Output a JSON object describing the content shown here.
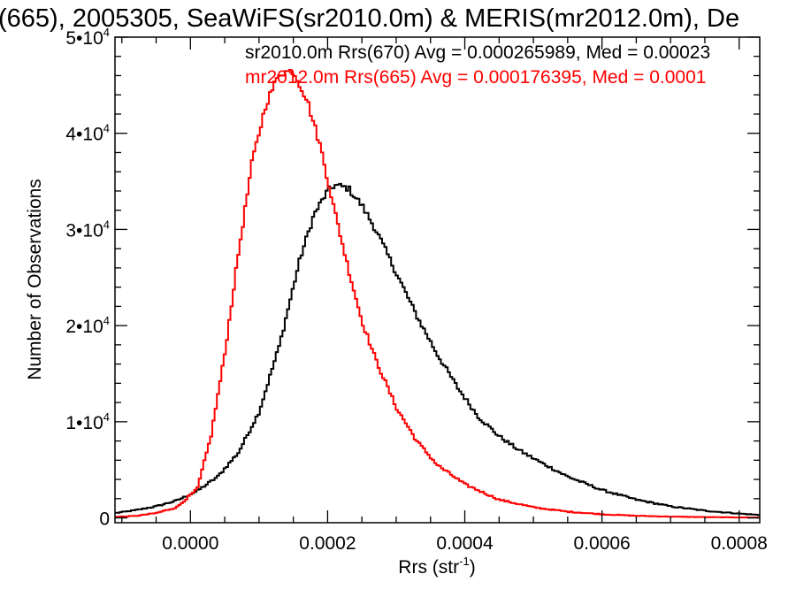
{
  "chart_data": {
    "type": "line",
    "style": "histogram-step",
    "title": "(665), 2005305, SeaWiFS(sr2010.0m) & MERIS(mr2012.0m), De",
    "xlabel": "Rrs (str",
    "xlabel_sup": "-1",
    "xlabel_suffix": ")",
    "ylabel": "Number of Observations",
    "xlim": [
      -0.00011,
      0.00083
    ],
    "ylim": [
      -500,
      50000
    ],
    "grid": false,
    "legend_placement": "top-right",
    "x_ticks": [
      0.0,
      0.0002,
      0.0004,
      0.0006,
      0.0008
    ],
    "x_tick_labels": [
      "0.0000",
      "0.0002",
      "0.0004",
      "0.0006",
      "0.0008"
    ],
    "y_ticks": [
      0,
      10000,
      20000,
      30000,
      40000,
      50000
    ],
    "y_tick_labels": [
      {
        "base": "0",
        "exp": ""
      },
      {
        "base": "1•10",
        "exp": "4"
      },
      {
        "base": "2•10",
        "exp": "4"
      },
      {
        "base": "3•10",
        "exp": "4"
      },
      {
        "base": "4•10",
        "exp": "4"
      },
      {
        "base": "5•10",
        "exp": "4"
      }
    ],
    "series": [
      {
        "name": "sr2010.0m Rrs(670) Avg = 0.000265989, Med = 0.00023",
        "color": "#000000",
        "x": [
          -0.00011,
          -8e-05,
          -5e-05,
          -2e-05,
          1e-05,
          4e-05,
          7e-05,
          0.0001,
          0.00013,
          0.00016,
          0.00018,
          0.0002,
          0.00021,
          0.00023,
          0.00025,
          0.00027,
          0.0003,
          0.00033,
          0.00036,
          0.00039,
          0.00042,
          0.00045,
          0.00048,
          0.00051,
          0.00055,
          0.0006,
          0.00065,
          0.0007,
          0.00075,
          0.0008,
          0.00083
        ],
        "values": [
          500,
          800,
          1200,
          1800,
          2800,
          4300,
          6800,
          11000,
          18000,
          27000,
          31500,
          34000,
          34600,
          34300,
          32500,
          30000,
          25500,
          21000,
          17000,
          13500,
          10500,
          8500,
          7000,
          5800,
          4300,
          2900,
          1900,
          1200,
          750,
          450,
          300
        ]
      },
      {
        "name": "mr2012.0m Rrs(665) Avg = 0.000176395, Med = 0.0001",
        "color": "#ff0000",
        "x": [
          -0.00011,
          -8e-05,
          -5e-05,
          -2e-05,
          1e-05,
          3e-05,
          5e-05,
          7e-05,
          9e-05,
          0.00011,
          0.00013,
          0.00015,
          0.00017,
          0.00019,
          0.00021,
          0.00023,
          0.00025,
          0.00027,
          0.0003,
          0.00033,
          0.00036,
          0.0004,
          0.00045,
          0.0005,
          0.00055,
          0.0006,
          0.00065,
          0.0007,
          0.00075,
          0.0008,
          0.00083
        ],
        "values": [
          100,
          200,
          500,
          1100,
          3000,
          8500,
          17000,
          27500,
          37000,
          43000,
          46300,
          46500,
          43500,
          38500,
          32000,
          26000,
          20500,
          16500,
          11500,
          8000,
          5500,
          3500,
          1900,
          1100,
          650,
          380,
          220,
          130,
          80,
          50,
          30
        ]
      }
    ]
  }
}
